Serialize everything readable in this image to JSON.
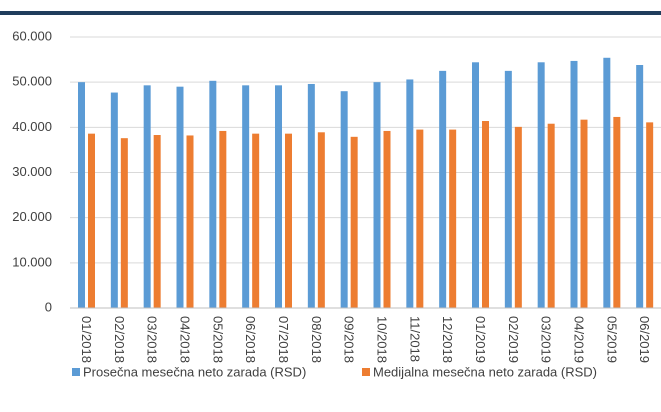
{
  "chart_data": {
    "type": "bar",
    "categories": [
      "01/2018",
      "02/2018",
      "03/2018",
      "04/2018",
      "05/2018",
      "06/2018",
      "07/2018",
      "08/2018",
      "09/2018",
      "10/2018",
      "11/2018",
      "12/2018",
      "01/2019",
      "02/2019",
      "03/2019",
      "04/2019",
      "05/2019",
      "06/2019"
    ],
    "series": [
      {
        "name": "Prosečna mesečna neto zarada (RSD)",
        "color": "#5b9bd5",
        "values": [
          50000,
          47700,
          49300,
          49000,
          50300,
          49300,
          49300,
          49600,
          48000,
          50000,
          50600,
          52500,
          54400,
          52500,
          54400,
          54700,
          55400,
          53800
        ]
      },
      {
        "name": "Medijalna mesečna neto zarada (RSD)",
        "color": "#ed7d31",
        "values": [
          38600,
          37600,
          38300,
          38200,
          39200,
          38600,
          38600,
          38900,
          37900,
          39200,
          39500,
          39500,
          41400,
          40100,
          40800,
          41700,
          42300,
          41100
        ]
      }
    ],
    "ylim": [
      0,
      60000
    ],
    "yticks": [
      0,
      {
        "value": 10000,
        "label": "10.000"
      },
      {
        "value": 20000,
        "label": "20.000"
      },
      {
        "value": 30000,
        "label": "30.000"
      },
      {
        "value": 40000,
        "label": "40.000"
      },
      {
        "value": 50000,
        "label": "50.000"
      },
      {
        "value": 60000,
        "label": "60.000"
      }
    ],
    "grid": true
  }
}
